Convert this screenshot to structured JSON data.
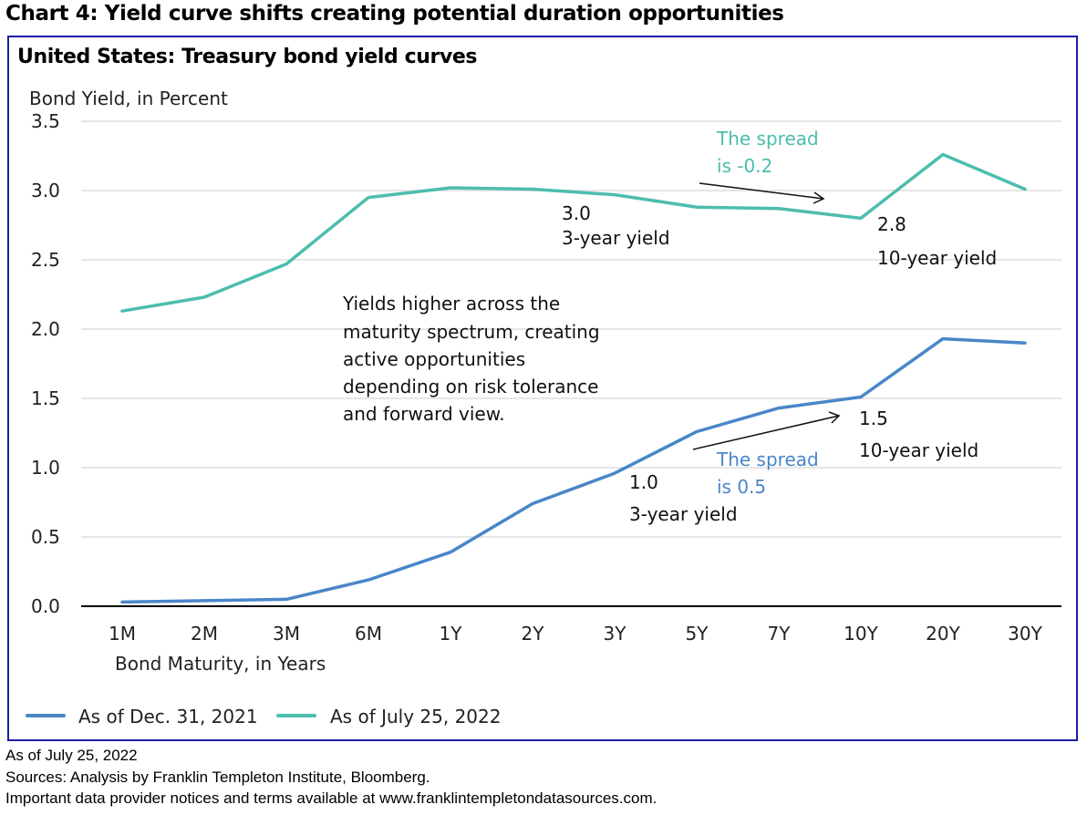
{
  "heading": "Chart 4:  Yield curve shifts creating potential duration opportunities",
  "colors": {
    "frame": "#1c1ca6",
    "series_dec_2021": "#4a86c8",
    "series_jul_2022": "#4dbdad",
    "grid": "#e6e6e6",
    "axis": "#000000"
  },
  "chart_data": {
    "type": "line",
    "title": "United States: Treasury bond yield curves",
    "ylabel": "Bond Yield, in Percent",
    "xlabel": "Bond Maturity, in Years",
    "ylim": [
      0,
      3.5
    ],
    "yticks": [
      "0.0",
      "0.5",
      "1.0",
      "1.5",
      "2.0",
      "2.5",
      "3.0",
      "3.5"
    ],
    "ytick_values": [
      0,
      0.5,
      1.0,
      1.5,
      2.0,
      2.5,
      3.0,
      3.5
    ],
    "grid": true,
    "legend_position": "bottom-left",
    "categories": [
      "1M",
      "2M",
      "3M",
      "6M",
      "1Y",
      "2Y",
      "3Y",
      "5Y",
      "7Y",
      "10Y",
      "20Y",
      "30Y"
    ],
    "series": [
      {
        "name": "As of Dec. 31, 2021",
        "color": "#4a86c8",
        "values": [
          0.03,
          0.04,
          0.05,
          0.19,
          0.39,
          0.74,
          0.96,
          1.26,
          1.43,
          1.51,
          1.93,
          1.9
        ]
      },
      {
        "name": "As of July 25, 2022",
        "color": "#4dbdad",
        "values": [
          2.13,
          2.23,
          2.47,
          2.95,
          3.02,
          3.01,
          2.97,
          2.88,
          2.87,
          2.8,
          3.26,
          3.01
        ]
      }
    ],
    "annotations": {
      "body": [
        "Yields higher across the",
        "maturity spectrum, creating",
        "active opportunities",
        "depending on risk tolerance",
        "and forward view."
      ],
      "jul_spread": [
        "The spread",
        "is -0.2"
      ],
      "jul_3y_value": "3.0",
      "jul_3y_label": "3-year yield",
      "jul_10y_value": "2.8",
      "jul_10y_label": "10-year yield",
      "dec_spread": [
        "The spread",
        "is 0.5"
      ],
      "dec_3y_value": "1.0",
      "dec_3y_label": "3-year yield",
      "dec_10y_value": "1.5",
      "dec_10y_label": "10-year yield"
    }
  },
  "footer": {
    "line1": "As of July 25, 2022",
    "line2": "Sources: Analysis by Franklin Templeton Institute, Bloomberg.",
    "line3": "Important data provider notices and terms available at www.franklintempletondatasources.com."
  }
}
